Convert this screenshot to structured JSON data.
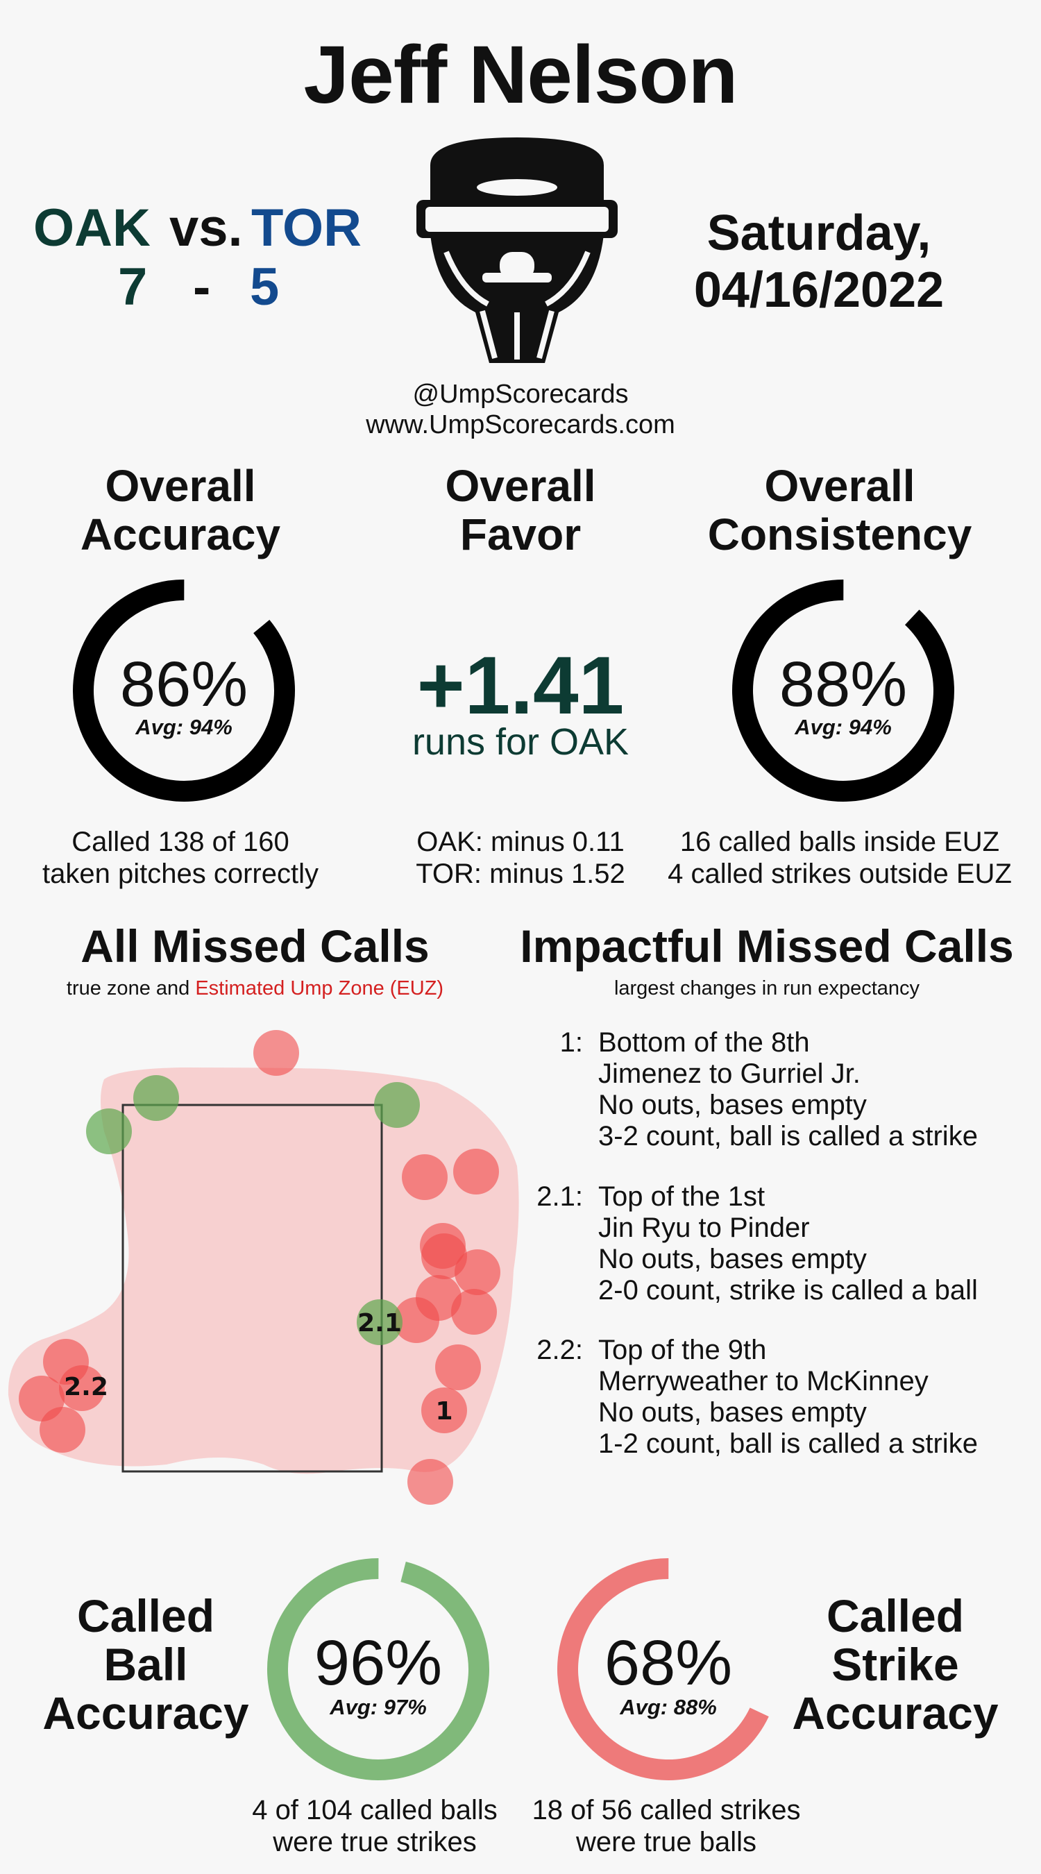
{
  "umpire": "Jeff Nelson",
  "matchup": {
    "away": {
      "abbr": "OAK",
      "score": "7",
      "color": "#0d3b33"
    },
    "vs": "vs.",
    "dash": "-",
    "home": {
      "abbr": "TOR",
      "score": "5",
      "color": "#134a8e"
    }
  },
  "date": {
    "line1": "Saturday,",
    "line2": "04/16/2022"
  },
  "credits": {
    "handle": "@UmpScorecards",
    "site": "www.UmpScorecards.com"
  },
  "mask_icon": "umpire-mask-icon",
  "accuracy": {
    "title_line1": "Overall",
    "title_line2": "Accuracy",
    "value": "86%",
    "fraction": 0.86,
    "avg": "Avg: 94%",
    "caption_line1": "Called 138 of 160",
    "caption_line2": "taken pitches correctly"
  },
  "favor": {
    "title_line1": "Overall",
    "title_line2": "Favor",
    "value": "+1.41",
    "subtitle": "runs for OAK",
    "caption_line1": "OAK: minus 0.11",
    "caption_line2": "TOR: minus 1.52",
    "color": "#0d3b33"
  },
  "consistency": {
    "title_line1": "Overall",
    "title_line2": "Consistency",
    "value": "88%",
    "fraction": 0.88,
    "avg": "Avg: 94%",
    "caption_line1": "16 called balls inside EUZ",
    "caption_line2": "4 called strikes outside EUZ"
  },
  "missed": {
    "title": "All Missed Calls",
    "sub_prefix": "true zone and",
    "sub_euz": "Estimated Ump Zone (EUZ)",
    "labels": {
      "one": "1",
      "two_one": "2.1",
      "two_two": "2.2"
    }
  },
  "impactful": {
    "title": "Impactful Missed Calls",
    "sub": "largest changes in run expectancy",
    "calls": [
      {
        "num": "1:",
        "line1": "Bottom of the 8th",
        "line2": "Jimenez to Gurriel Jr.",
        "line3": "No outs, bases empty",
        "line4": "3-2 count, ball is called a strike"
      },
      {
        "num": "2.1:",
        "line1": "Top of the 1st",
        "line2": "Jin Ryu to Pinder",
        "line3": "No outs, bases empty",
        "line4": "2-0 count, strike is called a ball"
      },
      {
        "num": "2.2:",
        "line1": "Top of the 9th",
        "line2": "Merryweather to McKinney",
        "line3": "No outs, bases empty",
        "line4": "1-2 count, ball is called a strike"
      }
    ]
  },
  "ball_accuracy": {
    "title_line1": "Called",
    "title_line2": "Ball",
    "title_line3": "Accuracy",
    "value": "96%",
    "fraction": 0.96,
    "avg": "Avg: 97%",
    "caption_line1": "4 of 104 called balls",
    "caption_line2": "were true strikes",
    "color": "#80b97a"
  },
  "strike_accuracy": {
    "title_line1": "Called",
    "title_line2": "Strike",
    "title_line3": "Accuracy",
    "value": "68%",
    "fraction": 0.68,
    "avg": "Avg: 88%",
    "caption_line1": "18 of 56 called strikes",
    "caption_line2": "were true balls",
    "color": "#ee7a7a"
  }
}
